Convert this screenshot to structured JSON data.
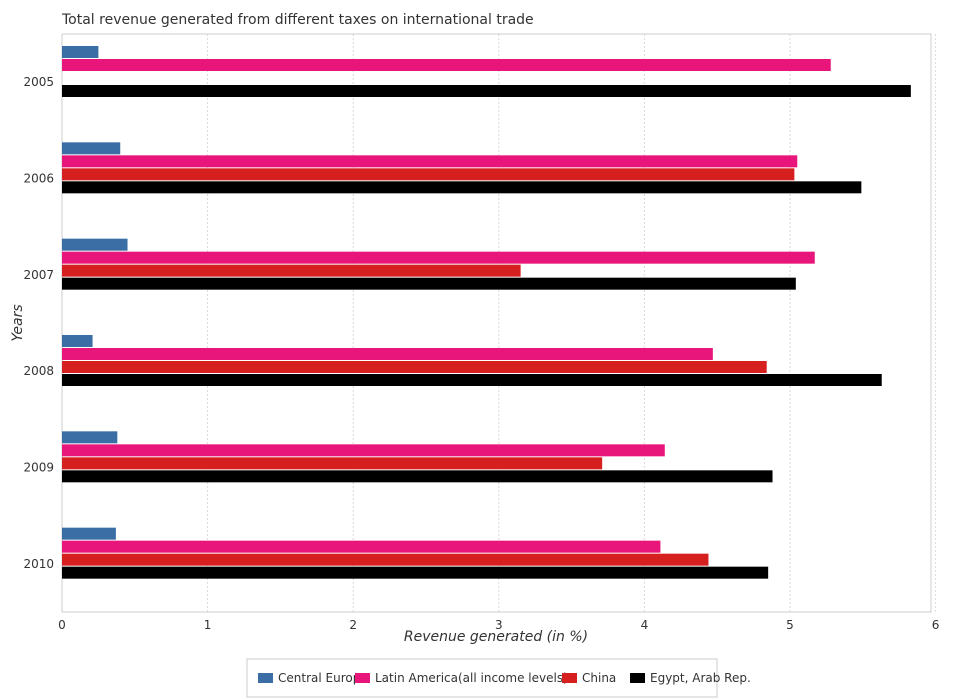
{
  "chart_data": {
    "type": "bar",
    "orientation": "horizontal",
    "title": "Total revenue generated from different taxes on international trade",
    "xlabel": "Revenue generated (in %)",
    "ylabel": "Years",
    "xlim": [
      0,
      6.1
    ],
    "xticks": [
      "0",
      "1",
      "2",
      "3",
      "4",
      "5",
      "6"
    ],
    "categories": [
      "2005",
      "2006",
      "2007",
      "2008",
      "2009",
      "2010"
    ],
    "series": [
      {
        "name": "Central Europe",
        "color": "#3a6ea5",
        "values": [
          0.25,
          0.4,
          0.45,
          0.21,
          0.38,
          0.37
        ]
      },
      {
        "name": "Latin America(all income levels)",
        "color": "#e8157a",
        "values": [
          5.28,
          5.05,
          5.17,
          4.47,
          4.14,
          4.11
        ]
      },
      {
        "name": "China",
        "color": "#d62020",
        "values": [
          0.0,
          5.03,
          3.15,
          4.84,
          3.71,
          4.44
        ]
      },
      {
        "name": "Egypt, Arab Rep.",
        "color": "#000000",
        "values": [
          5.83,
          5.49,
          5.04,
          5.63,
          4.88,
          4.85
        ]
      }
    ],
    "legend_position": "bottom",
    "grid": true
  }
}
